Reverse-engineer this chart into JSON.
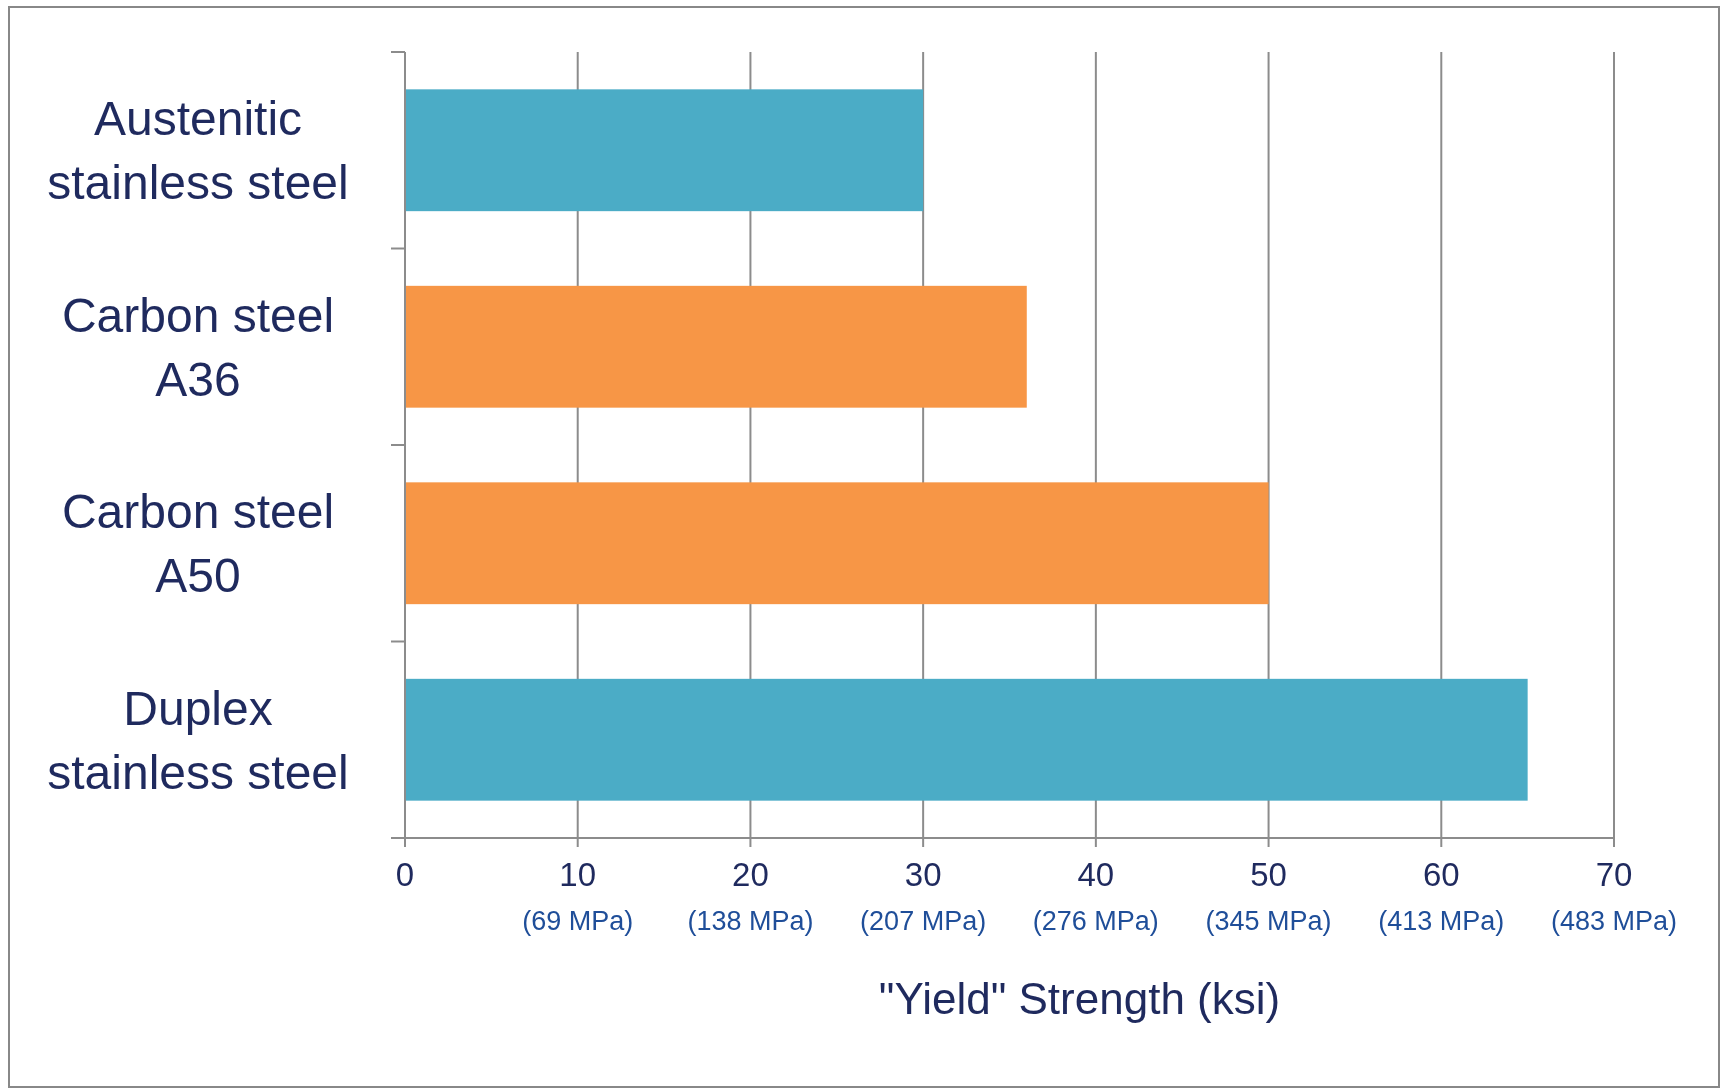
{
  "chart_data": {
    "type": "bar",
    "orientation": "horizontal",
    "categories": [
      "Austenitic stainless steel",
      "Carbon steel A36",
      "Carbon steel A50",
      "Duplex stainless steel"
    ],
    "values": [
      30,
      36,
      50,
      65
    ],
    "colors": [
      "#4bacc6",
      "#f79646",
      "#f79646",
      "#4bacc6"
    ],
    "xlim": [
      0,
      70
    ],
    "xticks": [
      0,
      10,
      20,
      30,
      40,
      50,
      60,
      70
    ],
    "annotations": [
      "(69 MPa)",
      "(138 MPa)",
      "(207 MPa)",
      "(276 MPa)",
      "(345 MPa)",
      "(413 MPa)",
      "(483 MPa)"
    ],
    "xlabel": "\"Yield\" Strength (ksi)",
    "grid": "x"
  }
}
